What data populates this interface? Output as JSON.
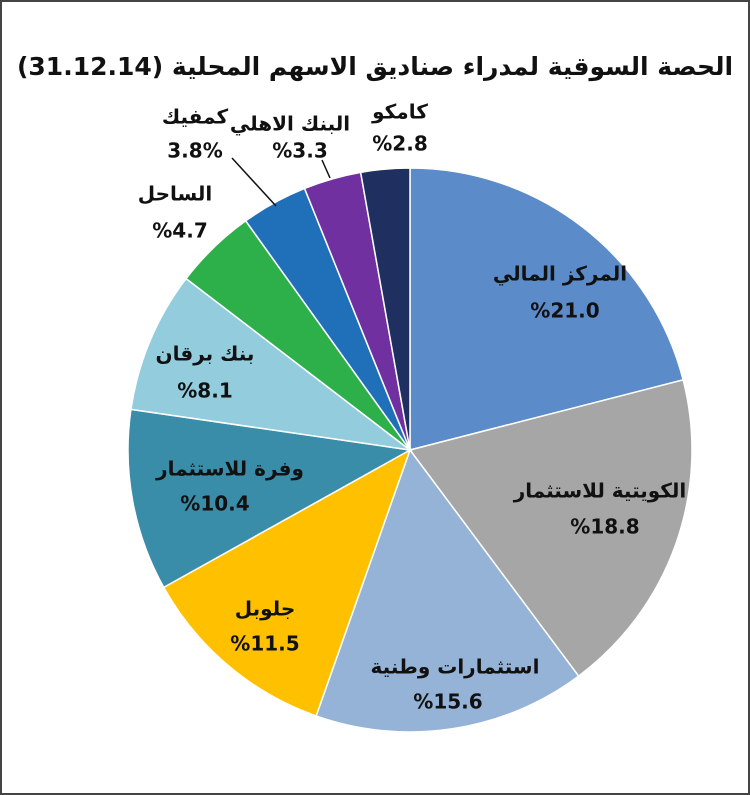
{
  "chart_data": {
    "type": "pie",
    "title": "الحصة السوقية لمدراء صناديق الاسهم المحلية (31.12.14)",
    "categories": [
      "المركز المالي",
      "الكويتية للاستثمار",
      "استثمارات وطنية",
      "جلوبل",
      "وفرة للاستثمار",
      "بنك برقان",
      "الساحل",
      "كمفيك",
      "البنك الاهلي",
      "كامكو"
    ],
    "values": [
      21.0,
      18.8,
      15.6,
      11.5,
      10.4,
      8.1,
      4.7,
      3.8,
      3.3,
      2.8
    ],
    "value_labels": [
      "%21.0",
      "%18.8",
      "%15.6",
      "%11.5",
      "%10.4",
      "%8.1",
      "%4.7",
      "3.8%",
      "%3.3",
      "%2.8"
    ],
    "colors": [
      "#5b8bc9",
      "#a6a6a6",
      "#95b3d7",
      "#ffc000",
      "#3a8da8",
      "#93cddd",
      "#2db04a",
      "#1f6fb9",
      "#7030a0",
      "#1f3060"
    ]
  }
}
